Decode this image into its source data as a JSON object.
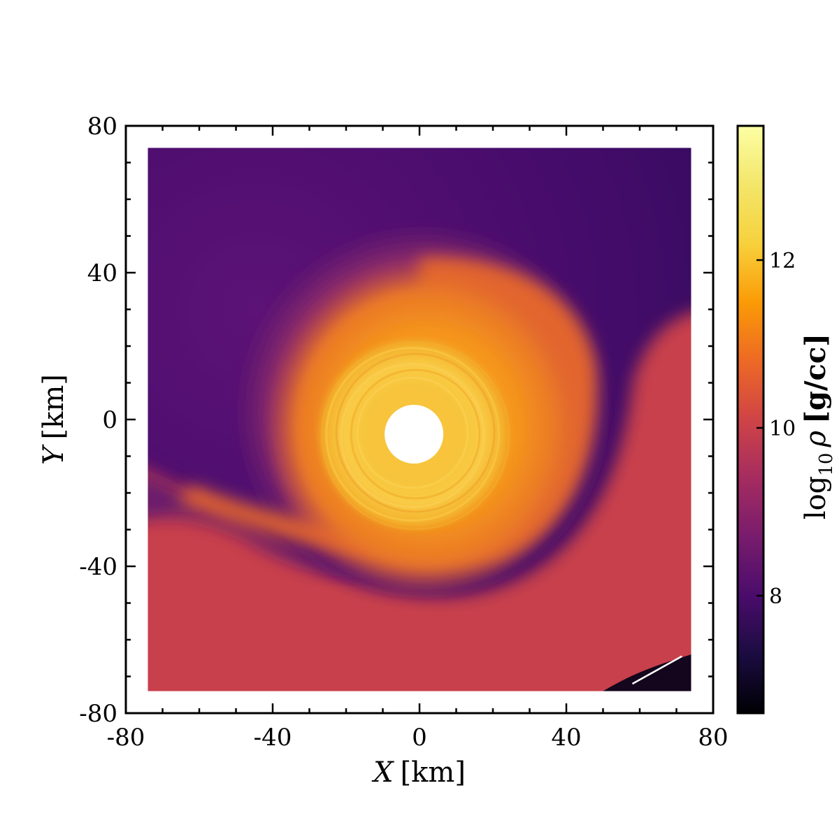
{
  "chart_data": {
    "type": "heatmap",
    "title": "",
    "xlabel": {
      "var": "X",
      "unit": "[km]"
    },
    "ylabel": {
      "var": "Y",
      "unit": "[km]"
    },
    "xlim": [
      -80,
      80
    ],
    "ylim": [
      -80,
      80
    ],
    "data_extent": {
      "x": [
        -74,
        74
      ],
      "y": [
        -74,
        74
      ]
    },
    "xticks": [
      -80,
      -40,
      0,
      40,
      80
    ],
    "yticks": [
      -80,
      -40,
      0,
      40,
      80
    ],
    "xtick_labels": [
      "-80",
      "-40",
      "0",
      "40",
      "80"
    ],
    "ytick_labels": [
      "-80",
      "-40",
      "0",
      "40",
      "80"
    ],
    "quantity": "log10 density",
    "colorbar": {
      "label_prefix": "log",
      "label_sub": "10",
      "label_symbol": "ρ",
      "label_unit": "[g/cc]",
      "range": [
        6.6,
        13.6
      ],
      "ticks": [
        8,
        10,
        12
      ],
      "tick_labels": [
        "8",
        "10",
        "12"
      ],
      "colormap": "inferno"
    },
    "features": {
      "excised_core": {
        "center": [
          -1.5,
          -4
        ],
        "radius": 8
      },
      "dense_ring": {
        "center": [
          -1.5,
          -4
        ],
        "inner_radius": 14,
        "outer_radius": 27,
        "value": 12.9
      },
      "spiral_arm": "single trailing arm winding outward from the core, low-density gap to the lower-left",
      "background_value": 8.0,
      "corner_artifact": "thin white streak in lower-right corner"
    }
  },
  "colors": {
    "core": "#ffffff",
    "ring": "#f9c440",
    "disk": "#f3961c",
    "arm": "#e1642f",
    "outer": "#c73f4a",
    "halo": "#8e2a6a",
    "background": "#4c0e6e",
    "dark_background": "#330b5e"
  }
}
